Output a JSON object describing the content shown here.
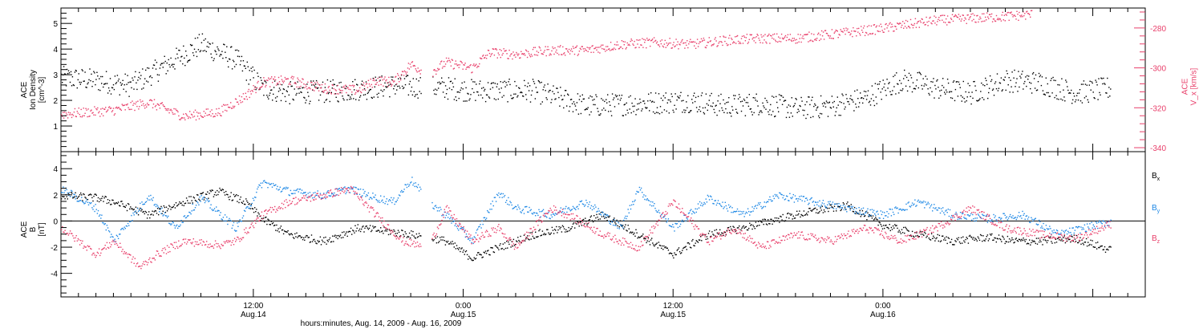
{
  "chart_data": [
    {
      "type": "scatter",
      "panel": "top",
      "left_axis": {
        "label_lines": [
          "ACE",
          "Ion Density",
          "[cm^-3]"
        ],
        "ylim": [
          0.0,
          5.6
        ],
        "tick_labels": [
          "1",
          "2",
          "3",
          "4",
          "5"
        ]
      },
      "right_axis": {
        "label_lines": [
          "ACE",
          "V_x [km/s]"
        ],
        "ylim": [
          -342,
          -270
        ],
        "tick_labels": [
          "-280",
          "-300",
          "-320",
          "-340"
        ],
        "color": "#e8406b"
      },
      "x_tick_labels": [
        [
          "12:00",
          "Aug.14"
        ],
        [
          "0:00",
          "Aug.15"
        ],
        [
          "12:00",
          "Aug.15"
        ],
        [
          "0:00",
          "Aug.16"
        ]
      ],
      "xlim_hours": [
        0,
        62
      ],
      "series": [
        {
          "name": "Ion Density",
          "axis": "left",
          "color": "#000000",
          "x": [
            0,
            2,
            4,
            6,
            8,
            10,
            11.5,
            13,
            16,
            19,
            22,
            23.5,
            27,
            30,
            33,
            36,
            38,
            40,
            42,
            44,
            46,
            48,
            49,
            50,
            52,
            54,
            56,
            58,
            60
          ],
          "y": [
            2.9,
            2.8,
            2.6,
            3.4,
            4.2,
            3.6,
            2.5,
            2.3,
            2.4,
            2.6,
            2.5,
            2.4,
            2.4,
            1.8,
            1.9,
            2.0,
            1.8,
            1.9,
            1.7,
            1.8,
            2.1,
            2.8,
            2.7,
            2.5,
            2.3,
            2.8,
            2.7,
            2.3,
            2.5
          ]
        },
        {
          "name": "V_x",
          "axis": "right",
          "color": "#e8406b",
          "x": [
            0,
            3,
            5,
            7,
            9,
            10.5,
            11.5,
            13,
            15,
            17,
            18,
            19,
            20,
            21,
            22,
            23.5,
            24.5,
            26,
            28,
            30,
            32,
            34,
            36,
            38,
            40,
            42,
            44,
            46,
            47,
            48.5,
            50,
            52,
            54,
            55.5
          ],
          "y": [
            -323,
            -321,
            -317,
            -324,
            -322,
            -314,
            -307,
            -306,
            -310,
            -311,
            -306,
            -307,
            -298,
            -303,
            -297,
            -300,
            -292,
            -293,
            -291,
            -291,
            -288,
            -287,
            -288,
            -286,
            -285,
            -285,
            -283,
            -281,
            -280,
            -278,
            -276,
            -275,
            -274,
            -273
          ]
        }
      ]
    },
    {
      "type": "scatter",
      "panel": "bottom",
      "left_axis": {
        "label_lines": [
          "ACE",
          "B",
          "[nT]"
        ],
        "ylim": [
          -5.8,
          5.3
        ],
        "tick_labels": [
          "4",
          "2",
          "0",
          "-2",
          "-4"
        ]
      },
      "legend_position": "right",
      "legend": [
        "B_x",
        "B_y",
        "B_z"
      ],
      "xlim_hours": [
        0,
        62
      ],
      "series": [
        {
          "name": "B_x",
          "color": "#000000",
          "x": [
            0,
            2,
            3,
            5,
            7,
            9,
            10.5,
            11.5,
            13,
            15,
            17,
            19,
            21,
            22,
            23.5,
            25,
            27,
            29,
            31,
            33,
            35,
            37,
            39,
            41,
            43,
            45,
            47,
            49,
            51,
            53,
            54.5,
            56,
            58,
            60
          ],
          "y": [
            2.0,
            1.8,
            1.5,
            0.5,
            1.5,
            2.3,
            1.5,
            0.2,
            -1.0,
            -1.5,
            -0.5,
            -0.8,
            -1.2,
            -1.5,
            -2.8,
            -2.0,
            -1.0,
            -0.5,
            0.5,
            -1.0,
            -2.5,
            -1.0,
            -0.5,
            0.2,
            0.8,
            1.2,
            -0.3,
            -1.0,
            -1.5,
            -1.2,
            -1.5,
            -1.5,
            -1.3,
            -2.2
          ]
        },
        {
          "name": "B_y",
          "color": "#1e88e5",
          "x": [
            0,
            2,
            3,
            5,
            6.5,
            8,
            10,
            11.5,
            13,
            15,
            16.5,
            18,
            19,
            20,
            21,
            22,
            23.5,
            25,
            26,
            28,
            30,
            32,
            33,
            35,
            37,
            39,
            41,
            43,
            45,
            47,
            49,
            51,
            53,
            55,
            57,
            60
          ],
          "y": [
            2.5,
            1.0,
            -1.5,
            2.0,
            -0.5,
            1.8,
            -0.5,
            3.0,
            2.3,
            2.0,
            2.5,
            1.8,
            1.5,
            3.2,
            1.5,
            0.5,
            -1.5,
            2.2,
            1.0,
            0.5,
            1.5,
            -0.5,
            2.5,
            -0.5,
            1.8,
            0.5,
            2.0,
            1.5,
            1.0,
            0.5,
            1.5,
            0.5,
            0.2,
            0.5,
            -1.0,
            0.0
          ]
        },
        {
          "name": "B_z",
          "color": "#e8406b",
          "x": [
            0,
            1,
            2,
            3,
            4.5,
            5.5,
            7,
            9,
            10,
            11.5,
            13,
            15,
            16.5,
            18,
            19.5,
            21,
            22,
            23.5,
            25,
            26,
            28,
            29,
            31,
            33,
            35,
            37,
            38.5,
            40,
            42,
            44,
            46,
            48,
            50,
            52,
            54,
            56,
            58,
            60
          ],
          "y": [
            -0.5,
            -1.5,
            -2.5,
            -1.5,
            -3.5,
            -2.5,
            -1.5,
            -1.8,
            -1.5,
            0.5,
            1.5,
            2.0,
            2.5,
            0.5,
            -1.5,
            -2.0,
            1.0,
            -1.5,
            -0.5,
            -2.0,
            1.0,
            0.5,
            -1.0,
            -2.0,
            1.5,
            -1.5,
            -0.5,
            -2.0,
            -1.0,
            -1.5,
            -0.5,
            -1.5,
            -0.5,
            1.0,
            -0.5,
            -1.0,
            -1.3,
            -0.2
          ]
        }
      ]
    }
  ],
  "x_axis": {
    "title": "hours:minutes, Aug. 14, 2009 - Aug. 16, 2009"
  }
}
